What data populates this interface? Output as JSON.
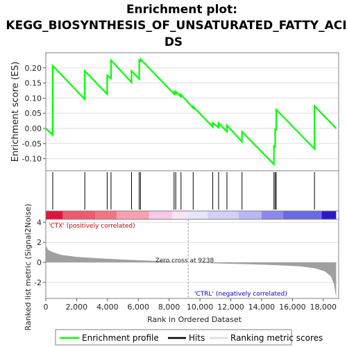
{
  "title_line1": "Enrichment plot:",
  "title_line2": "KEGG_BIOSYNTHESIS_OF_UNSATURATED_FATTY_ACI",
  "title_line3": "DS",
  "colors": {
    "enrichment": "#00ff00",
    "hits": "#000000",
    "ranking": "#a0a0a0",
    "ctx_label": "#cc0000",
    "ctrl_label": "#0000cc",
    "frame": "#808080",
    "grid": "#dddddd"
  },
  "chart_data": {
    "type": "line",
    "n_genes": 18836,
    "xlim": [
      0,
      19000
    ],
    "x_ticks": [
      0,
      2000,
      4000,
      6000,
      8000,
      10000,
      12000,
      14000,
      16000,
      18000
    ],
    "x_tick_labels": [
      "0",
      "2,000",
      "4,000",
      "6,000",
      "8,000",
      "10,000",
      "12,000",
      "14,000",
      "16,000",
      "18,000"
    ],
    "xlabel": "Rank in Ordered Dataset",
    "es_panel": {
      "ylabel": "Enrichment score (ES)",
      "ylim": [
        -0.14,
        0.25
      ],
      "y_ticks": [
        -0.1,
        -0.05,
        0.0,
        0.05,
        0.1,
        0.15,
        0.2
      ],
      "y_tick_labels": [
        "-0.10",
        "-0.05",
        "0.00",
        "0.05",
        "0.10",
        "0.15",
        "0.20"
      ],
      "series_name": "Enrichment profile",
      "hits": [
        450,
        2530,
        3980,
        4230,
        5560,
        6060,
        6140,
        8320,
        8430,
        8770,
        9560,
        10830,
        11210,
        11750,
        12730,
        14800,
        14880,
        14950,
        17430
      ],
      "es_before": [
        -0.022,
        0.096,
        0.113,
        0.165,
        0.152,
        0.163,
        0.222,
        0.114,
        0.113,
        0.104,
        0.067,
        0.005,
        0.003,
        -0.011,
        -0.044,
        -0.119,
        -0.061,
        -0.004,
        -0.068
      ],
      "es_after": [
        0.207,
        0.19,
        0.175,
        0.225,
        0.19,
        0.225,
        0.229,
        0.12,
        0.122,
        0.112,
        0.072,
        0.018,
        0.018,
        0.01,
        -0.011,
        -0.058,
        -0.003,
        0.062,
        0.074
      ],
      "es_start": 0.0,
      "es_end": 0.0
    },
    "ranked_panel": {
      "ylabel": "Ranked list metric (Signal2Noise)",
      "ylim": [
        -3.6,
        4.3
      ],
      "y_ticks": [
        -2,
        0,
        2,
        4
      ],
      "y_tick_labels": [
        "-2",
        "0",
        "2",
        "4"
      ],
      "zero_cross": 9238,
      "zero_cross_label": "Zero cross at 9238",
      "pos_label": "'CTX' (positively correlated)",
      "neg_label": "'CTRL' (negatively correlated)",
      "metric_points": [
        [
          0,
          2.3
        ],
        [
          30,
          1.6
        ],
        [
          150,
          1.25
        ],
        [
          400,
          1.05
        ],
        [
          1000,
          0.75
        ],
        [
          2000,
          0.55
        ],
        [
          3500,
          0.4
        ],
        [
          5000,
          0.28
        ],
        [
          7000,
          0.15
        ],
        [
          9238,
          0.0
        ],
        [
          11000,
          -0.1
        ],
        [
          13000,
          -0.18
        ],
        [
          15000,
          -0.28
        ],
        [
          16500,
          -0.4
        ],
        [
          17500,
          -0.6
        ],
        [
          18100,
          -0.9
        ],
        [
          18500,
          -1.4
        ],
        [
          18700,
          -2.2
        ],
        [
          18836,
          -3.5
        ]
      ]
    },
    "legend": [
      "Enrichment profile",
      "Hits",
      "Ranking metric scores"
    ]
  }
}
